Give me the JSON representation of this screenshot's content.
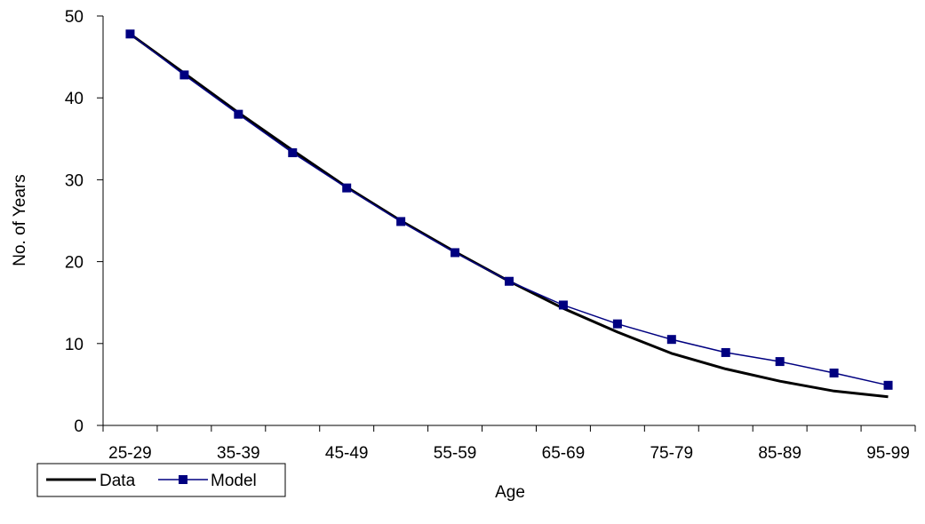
{
  "chart_data": {
    "type": "line",
    "title": "",
    "xlabel": "Age",
    "ylabel": "No. of Years",
    "ylim": [
      0,
      50
    ],
    "yticks": [
      0,
      10,
      20,
      30,
      40,
      50
    ],
    "categories": [
      "25-29",
      "30-34",
      "35-39",
      "40-44",
      "45-49",
      "50-54",
      "55-59",
      "60-64",
      "65-69",
      "70-74",
      "75-79",
      "80-84",
      "85-89",
      "90-94",
      "95-99"
    ],
    "xtick_labels": [
      "25-29",
      "",
      "35-39",
      "",
      "45-49",
      "",
      "55-59",
      "",
      "65-69",
      "",
      "75-79",
      "",
      "85-89",
      "",
      "95-99"
    ],
    "grid": false,
    "legend_position": "bottom-left",
    "series": [
      {
        "name": "Data",
        "color": "#000000",
        "marker": "none",
        "values": [
          47.8,
          43.0,
          38.2,
          33.6,
          29.1,
          25.0,
          21.2,
          17.6,
          14.3,
          11.4,
          8.8,
          6.9,
          5.4,
          4.2,
          3.5
        ]
      },
      {
        "name": "Model",
        "color": "#000080",
        "marker": "square",
        "values": [
          47.8,
          42.8,
          38.0,
          33.3,
          29.0,
          24.9,
          21.1,
          17.6,
          14.7,
          12.4,
          10.5,
          8.9,
          7.8,
          6.4,
          4.9
        ]
      }
    ]
  }
}
